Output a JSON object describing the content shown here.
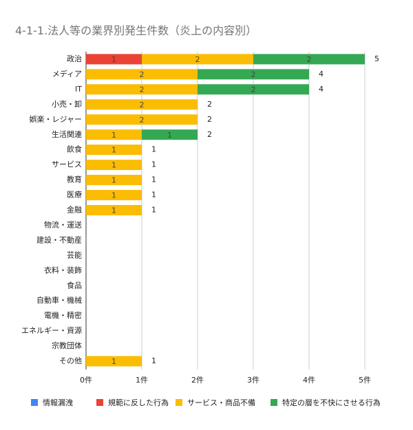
{
  "chart_data": {
    "type": "stacked-bar-horizontal",
    "title": "4-1-1.法人等の業界別発生件数（炎上の内容別）",
    "categories": [
      "政治",
      "メディア",
      "IT",
      "小売・卸",
      "娯楽・レジャー",
      "生活関連",
      "飲食",
      "サービス",
      "教育",
      "医療",
      "金融",
      "物流・運送",
      "建設・不動産",
      "芸能",
      "衣料・装飾",
      "食品",
      "自動車・機械",
      "電機・精密",
      "エネルギー・資源",
      "宗教団体",
      "その他"
    ],
    "series": [
      {
        "name": "情報漏洩",
        "color": "#4285f4",
        "values": [
          0,
          0,
          0,
          0,
          0,
          0,
          0,
          0,
          0,
          0,
          0,
          0,
          0,
          0,
          0,
          0,
          0,
          0,
          0,
          0,
          0
        ]
      },
      {
        "name": "規範に反した行為",
        "color": "#ea4335",
        "values": [
          1,
          0,
          0,
          0,
          0,
          0,
          0,
          0,
          0,
          0,
          0,
          0,
          0,
          0,
          0,
          0,
          0,
          0,
          0,
          0,
          0
        ]
      },
      {
        "name": "サービス・商品不備",
        "color": "#fbbc04",
        "values": [
          2,
          2,
          2,
          2,
          2,
          1,
          1,
          1,
          1,
          1,
          1,
          0,
          0,
          0,
          0,
          0,
          0,
          0,
          0,
          0,
          1
        ]
      },
      {
        "name": "特定の層を不快にさせる行為",
        "color": "#34a853",
        "values": [
          2,
          2,
          2,
          0,
          0,
          1,
          0,
          0,
          0,
          0,
          0,
          0,
          0,
          0,
          0,
          0,
          0,
          0,
          0,
          0,
          0
        ]
      }
    ],
    "total_labels": [
      5,
      4,
      4,
      2,
      2,
      2,
      1,
      1,
      1,
      1,
      1,
      null,
      null,
      null,
      null,
      null,
      null,
      null,
      null,
      null,
      1
    ],
    "xlim": [
      0,
      5
    ],
    "xticks": [
      {
        "value": 0,
        "label": "0件"
      },
      {
        "value": 1,
        "label": "1件"
      },
      {
        "value": 2,
        "label": "2件"
      },
      {
        "value": 3,
        "label": "3件"
      },
      {
        "value": 4,
        "label": "4件"
      },
      {
        "value": 5,
        "label": "5件"
      }
    ],
    "grid": true,
    "legend": "bottom"
  }
}
